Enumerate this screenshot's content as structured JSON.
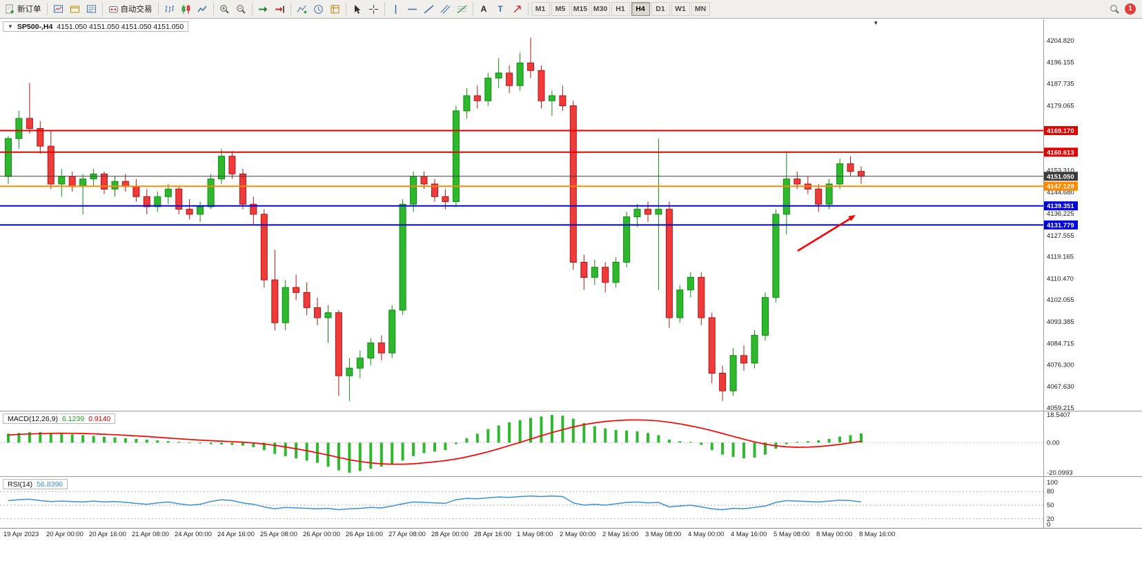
{
  "toolbar": {
    "new_order_label": "新订单",
    "auto_trading_label": "自动交易",
    "text_tool_label": "A",
    "text_label_tool_label": "T",
    "timeframes": [
      "M1",
      "M5",
      "M15",
      "M30",
      "H1",
      "H4",
      "D1",
      "W1",
      "MN"
    ],
    "active_timeframe": "H4",
    "notification_count": "1"
  },
  "chart": {
    "symbol_period": "SP500-,H4",
    "ohlc": "4151.050 4151.050 4151.050 4151.050"
  },
  "price_axis": {
    "labels": [
      "4204.820",
      "4196.155",
      "4187.735",
      "4179.065",
      "4153.310",
      "4144.680",
      "4136.225",
      "4127.555",
      "4119.165",
      "4110.470",
      "4102.055",
      "4093.385",
      "4084.715",
      "4076.300",
      "4067.630",
      "4059.215"
    ]
  },
  "macd": {
    "label": "MACD(12,26,9)",
    "main_value": "6.1239",
    "signal_value": "0.9140",
    "scale_labels": [
      "18.5407",
      "0.00",
      "-20.0993"
    ]
  },
  "rsi": {
    "label": "RSI(14)",
    "value": "56.8396",
    "scale_labels": [
      "100",
      "80",
      "50",
      "20",
      "0"
    ]
  },
  "time_axis": {
    "labels": [
      "19 Apr 2023",
      "20 Apr 00:00",
      "20 Apr 16:00",
      "21 Apr 08:00",
      "24 Apr 00:00",
      "24 Apr 16:00",
      "25 Apr 08:00",
      "26 Apr 00:00",
      "26 Apr 16:00",
      "27 Apr 08:00",
      "28 Apr 00:00",
      "28 Apr 16:00",
      "1 May 08:00",
      "2 May 00:00",
      "2 May 16:00",
      "3 May 08:00",
      "4 May 00:00",
      "4 May 16:00",
      "5 May 08:00",
      "8 May 00:00",
      "8 May 16:00"
    ]
  },
  "colors": {
    "candle_up": "#2db82d",
    "candle_up_stroke": "#0f8a0f",
    "candle_down": "#f03b3b",
    "candle_down_stroke": "#b01515",
    "level_red": "#e10000",
    "level_blue": "#0000dd",
    "level_orange": "#ff8a00",
    "bid_line": "#3c3c3c",
    "macd_hist": "#2db82d",
    "macd_signal": "#ff0000",
    "rsi_line": "#3b8fd4"
  },
  "chart_data": [
    {
      "type": "candlestick",
      "title": "SP500- H4",
      "ylim": [
        4059.215,
        4204.82
      ],
      "current_bid": 4151.05,
      "candles": [
        [
          4151,
          4167,
          4148,
          4166
        ],
        [
          4166,
          4177,
          4162,
          4174
        ],
        [
          4174,
          4188,
          4168,
          4170
        ],
        [
          4170,
          4173,
          4160,
          4163
        ],
        [
          4163,
          4169,
          4146,
          4148
        ],
        [
          4148,
          4154,
          4143,
          4151
        ],
        [
          4151,
          4153,
          4145,
          4147
        ],
        [
          4147,
          4152,
          4136,
          4150
        ],
        [
          4150,
          4154,
          4147,
          4152
        ],
        [
          4152,
          4153,
          4144,
          4146
        ],
        [
          4146,
          4151,
          4143,
          4149
        ],
        [
          4149,
          4152,
          4145,
          4147
        ],
        [
          4147,
          4150,
          4141,
          4143
        ],
        [
          4143,
          4146,
          4136,
          4139
        ],
        [
          4139,
          4145,
          4137,
          4143
        ],
        [
          4143,
          4148,
          4140,
          4146
        ],
        [
          4146,
          4147,
          4136,
          4138
        ],
        [
          4138,
          4142,
          4134,
          4136
        ],
        [
          4136,
          4141,
          4133,
          4139
        ],
        [
          4139,
          4152,
          4138,
          4150
        ],
        [
          4150,
          4162,
          4148,
          4159
        ],
        [
          4159,
          4161,
          4150,
          4152
        ],
        [
          4152,
          4154,
          4138,
          4140
        ],
        [
          4140,
          4143,
          4131.8,
          4136
        ],
        [
          4136,
          4138,
          4107,
          4110
        ],
        [
          4110,
          4122,
          4090,
          4093
        ],
        [
          4093,
          4110,
          4090,
          4107
        ],
        [
          4107,
          4112,
          4102,
          4105
        ],
        [
          4105,
          4109,
          4096,
          4099
        ],
        [
          4099,
          4103,
          4092,
          4095
        ],
        [
          4095,
          4100,
          4085,
          4097
        ],
        [
          4097,
          4098,
          4064,
          4072
        ],
        [
          4072,
          4079,
          4062,
          4075
        ],
        [
          4075,
          4082,
          4071,
          4079
        ],
        [
          4079,
          4087,
          4076,
          4085
        ],
        [
          4085,
          4088,
          4078,
          4081
        ],
        [
          4081,
          4100,
          4079,
          4098
        ],
        [
          4098,
          4142,
          4096,
          4140
        ],
        [
          4140,
          4153,
          4137,
          4151
        ],
        [
          4151,
          4153,
          4146,
          4148
        ],
        [
          4148,
          4150,
          4141,
          4143
        ],
        [
          4143,
          4146,
          4138,
          4141
        ],
        [
          4141,
          4179,
          4139,
          4177
        ],
        [
          4177,
          4186,
          4174,
          4183
        ],
        [
          4183,
          4187,
          4178,
          4181
        ],
        [
          4181,
          4192,
          4179,
          4190
        ],
        [
          4190,
          4198,
          4186,
          4192
        ],
        [
          4192,
          4195,
          4184,
          4187
        ],
        [
          4187,
          4200,
          4185,
          4196
        ],
        [
          4196,
          4206,
          4190,
          4193
        ],
        [
          4193,
          4195,
          4178,
          4181
        ],
        [
          4181,
          4185,
          4175,
          4183
        ],
        [
          4183,
          4187,
          4177,
          4179
        ],
        [
          4179,
          4181,
          4114,
          4117
        ],
        [
          4117,
          4120,
          4106,
          4111
        ],
        [
          4111,
          4118,
          4108,
          4115
        ],
        [
          4115,
          4117,
          4105,
          4109
        ],
        [
          4109,
          4119,
          4107,
          4117
        ],
        [
          4117,
          4137,
          4115,
          4135
        ],
        [
          4135,
          4140,
          4131,
          4138
        ],
        [
          4138,
          4141,
          4133,
          4136
        ],
        [
          4136,
          4166,
          4106,
          4138
        ],
        [
          4138,
          4141,
          4091,
          4095
        ],
        [
          4095,
          4108,
          4093,
          4106
        ],
        [
          4106,
          4113,
          4103,
          4111
        ],
        [
          4111,
          4113,
          4092,
          4095
        ],
        [
          4095,
          4097,
          4069,
          4073
        ],
        [
          4073,
          4076,
          4062,
          4066
        ],
        [
          4066,
          4083,
          4064,
          4080
        ],
        [
          4080,
          4084,
          4074,
          4077
        ],
        [
          4077,
          4090,
          4075,
          4088
        ],
        [
          4088,
          4105,
          4086,
          4103
        ],
        [
          4103,
          4138,
          4101,
          4136
        ],
        [
          4136,
          4161,
          4128,
          4150
        ],
        [
          4150,
          4153,
          4146,
          4148
        ],
        [
          4148,
          4151,
          4144,
          4146
        ],
        [
          4146,
          4148,
          4137,
          4140
        ],
        [
          4140,
          4150,
          4138,
          4148
        ],
        [
          4148,
          4158,
          4146,
          4156
        ],
        [
          4156,
          4159,
          4151,
          4153
        ],
        [
          4153,
          4155,
          4148,
          4151.05
        ]
      ],
      "levels": [
        {
          "price": 4169.17,
          "label": "4169.170",
          "color": "#e10000",
          "width": 2
        },
        {
          "price": 4160.613,
          "label": "4160.613",
          "color": "#e10000",
          "width": 2
        },
        {
          "price": 4151.05,
          "label": "4151.050",
          "color": "#3c3c3c",
          "width": 1
        },
        {
          "price": 4147.129,
          "label": "4147.129",
          "color": "#ff8a00",
          "width": 2
        },
        {
          "price": 4139.351,
          "label": "4139.351",
          "color": "#0000dd",
          "width": 2
        },
        {
          "price": 4131.779,
          "label": "4131.779",
          "color": "#0000dd",
          "width": 2
        }
      ],
      "annotations": [
        {
          "type": "arrow",
          "color": "#ff0000",
          "from": [
            1156,
            364
          ],
          "to": [
            1240,
            312
          ]
        }
      ]
    },
    {
      "type": "bar",
      "name": "MACD(12,26,9)",
      "ylim": [
        -20.0993,
        18.5407
      ],
      "current": {
        "main": 6.1239,
        "signal": 0.914
      },
      "hist": [
        6,
        6.5,
        7,
        7,
        6.5,
        6,
        5.5,
        5,
        4.5,
        4,
        3.5,
        3,
        2.5,
        2,
        1.5,
        1,
        0.5,
        0.2,
        -0.5,
        -1,
        -1.2,
        -1.5,
        -2,
        -3,
        -5,
        -7.5,
        -9,
        -10.5,
        -12,
        -13.5,
        -16,
        -18.5,
        -20,
        -19,
        -17.5,
        -16,
        -14.5,
        -12,
        -9,
        -7,
        -6,
        -5,
        -1,
        3,
        6,
        9,
        11.5,
        13.5,
        15,
        16.5,
        17.5,
        18.5,
        18,
        16,
        13,
        11,
        9.5,
        8.5,
        8,
        7.5,
        6.5,
        5,
        2,
        1,
        0.5,
        -1.5,
        -5,
        -8,
        -9.5,
        -10.5,
        -10,
        -8,
        -4,
        -1,
        0.5,
        1,
        1.5,
        2.5,
        4,
        5,
        6.1
      ],
      "signal": [
        5,
        5.5,
        5.8,
        6,
        6.2,
        6.3,
        6.2,
        6.1,
        5.9,
        5.6,
        5.3,
        4.9,
        4.5,
        4.1,
        3.6,
        3.1,
        2.6,
        2.1,
        1.7,
        1.3,
        1,
        0.7,
        0.3,
        -0.2,
        -0.9,
        -1.8,
        -2.9,
        -4.1,
        -5.4,
        -6.8,
        -8.3,
        -9.9,
        -11.4,
        -12.6,
        -13.5,
        -14.1,
        -14.4,
        -14.4,
        -14.1,
        -13.5,
        -12.8,
        -12,
        -10.9,
        -9.5,
        -7.9,
        -6.1,
        -4.1,
        -2,
        0.2,
        2.4,
        4.6,
        6.7,
        8.7,
        10.5,
        12,
        13.2,
        14.1,
        14.7,
        15.1,
        15.2,
        15,
        14.5,
        13.6,
        12.5,
        11.2,
        9.7,
        8,
        6.1,
        4.2,
        2.3,
        0.5,
        -1,
        -2.1,
        -2.8,
        -3.1,
        -3,
        -2.6,
        -2,
        -1.2,
        -0.2,
        0.9
      ]
    },
    {
      "type": "line",
      "name": "RSI(14)",
      "ylim": [
        0,
        100
      ],
      "levels": [
        80,
        50,
        20
      ],
      "current": 56.8396,
      "values": [
        60,
        62,
        63,
        60,
        58,
        59,
        58,
        57,
        59,
        57,
        58,
        56,
        54,
        52,
        55,
        57,
        53,
        50,
        52,
        58,
        62,
        60,
        55,
        52,
        46,
        42,
        45,
        44,
        43,
        42,
        43,
        40,
        42,
        43,
        45,
        44,
        48,
        53,
        57,
        56,
        55,
        54,
        62,
        65,
        64,
        66,
        68,
        67,
        69,
        70,
        69,
        70,
        69,
        55,
        50,
        52,
        50,
        53,
        56,
        57,
        55,
        56,
        46,
        48,
        50,
        46,
        42,
        40,
        43,
        42,
        45,
        48,
        56,
        60,
        59,
        58,
        57,
        59,
        61,
        60,
        57
      ]
    }
  ]
}
